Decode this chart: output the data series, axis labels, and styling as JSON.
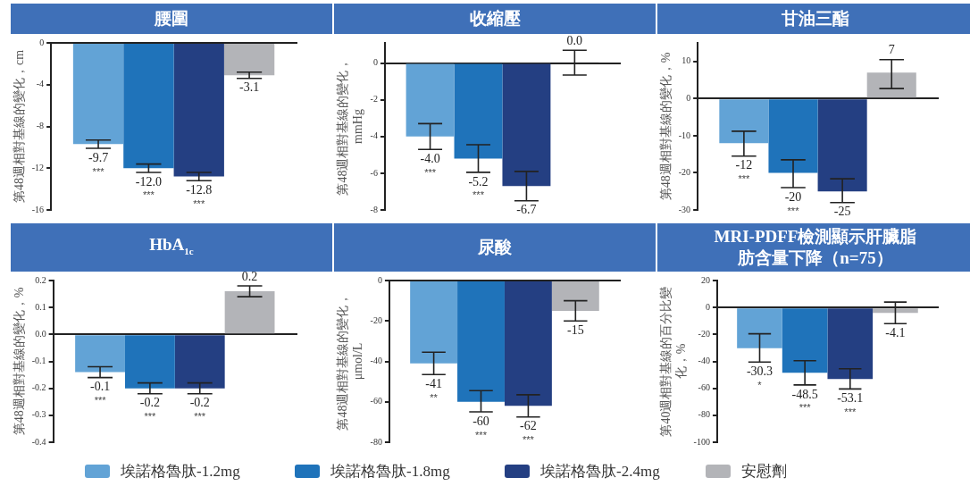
{
  "chart_data": [
    {
      "type": "bar",
      "title": "腰圍",
      "ylabel": "第48週相對基線的變化，cm",
      "categories": [
        null
      ],
      "ylim": [
        -16,
        0
      ],
      "yticks": [
        0,
        -4,
        -8,
        -12,
        -16
      ],
      "tick_labels": "y",
      "legend": "bottom",
      "series": [
        {
          "name": "埃諾格魯肽-1.2mg",
          "color": "#62a3d6",
          "values": [
            -9.7
          ],
          "errors": [
            0.4
          ],
          "value_labels": [
            "-9.7\n***"
          ]
        },
        {
          "name": "埃諾格魯肽-1.8mg",
          "color": "#1f73ba",
          "values": [
            -12.0
          ],
          "errors": [
            0.4
          ],
          "value_labels": [
            "-12.0\n***"
          ]
        },
        {
          "name": "埃諾格魯肽-2.4mg",
          "color": "#243f82",
          "values": [
            -12.8
          ],
          "errors": [
            0.4
          ],
          "value_labels": [
            "-12.8\n***"
          ]
        },
        {
          "name": "安慰劑",
          "color": "#b3b4b8",
          "values": [
            -3.1
          ],
          "errors": [
            0.3
          ],
          "value_labels": [
            "-3.1"
          ]
        }
      ]
    },
    {
      "type": "bar",
      "title": "收縮壓",
      "ylabel": "第48週相對基線的變化，mmHg",
      "categories": [
        null
      ],
      "ylim": [
        -8,
        1.1
      ],
      "yticks": [
        0,
        -2,
        -4,
        -6,
        -8
      ],
      "tick_labels": "y",
      "series": [
        {
          "color": "#62a3d6",
          "values": [
            -4.0
          ],
          "errors": [
            0.7
          ],
          "value_labels": [
            "-4.0\n***"
          ]
        },
        {
          "color": "#1f73ba",
          "values": [
            -5.2
          ],
          "errors": [
            0.75
          ],
          "value_labels": [
            "-5.2\n***"
          ]
        },
        {
          "color": "#243f82",
          "values": [
            -6.7
          ],
          "errors": [
            0.8
          ],
          "value_labels": [
            "-6.7\n***"
          ]
        },
        {
          "color": "#b3b4b8",
          "values": [
            0.04
          ],
          "errors": [
            [
              -0.65,
              0.7
            ]
          ],
          "value_labels": [
            "0.0"
          ]
        }
      ]
    },
    {
      "type": "bar",
      "title": "甘油三酯",
      "ylabel": "第48週相對基線的變化，%",
      "categories": [
        null
      ],
      "ylim": [
        -30,
        15
      ],
      "yticks": [
        10,
        0,
        -10,
        -20,
        -30
      ],
      "tick_labels": "y",
      "series": [
        {
          "color": "#62a3d6",
          "values": [
            -12
          ],
          "errors": [
            [
              -15.5,
              -8.8
            ]
          ],
          "value_labels": [
            "-12\n***"
          ]
        },
        {
          "color": "#1f73ba",
          "values": [
            -20
          ],
          "errors": [
            [
              -24,
              -16.5
            ]
          ],
          "value_labels": [
            "-20\n***"
          ]
        },
        {
          "color": "#243f82",
          "values": [
            -25
          ],
          "errors": [
            [
              -28,
              -21.6
            ]
          ],
          "value_labels": [
            "-25\n***"
          ]
        },
        {
          "color": "#b3b4b8",
          "values": [
            7
          ],
          "errors": [
            [
              2.7,
              10.5
            ]
          ],
          "value_labels": [
            "7"
          ]
        }
      ]
    },
    {
      "type": "bar",
      "title": "HbA$_{1c}$",
      "ylabel": "第48週相對基線的變化，%",
      "categories": [
        null
      ],
      "ylim": [
        -0.4,
        0.2
      ],
      "yticks": [
        0.2,
        0.1,
        {
          "value": 0,
          "label": "0.0"
        },
        -0.1,
        -0.2,
        -0.3,
        -0.4
      ],
      "tick_labels": "y",
      "series": [
        {
          "color": "#62a3d6",
          "values": [
            -0.14
          ],
          "errors": [
            [
              -0.16,
              -0.12
            ]
          ],
          "value_labels": [
            "-0.1\n***"
          ]
        },
        {
          "color": "#1f73ba",
          "values": [
            -0.2
          ],
          "errors": [
            [
              -0.22,
              -0.18
            ]
          ],
          "value_labels": [
            "-0.2\n***"
          ]
        },
        {
          "color": "#243f82",
          "values": [
            -0.2
          ],
          "errors": [
            [
              -0.22,
              -0.18
            ]
          ],
          "value_labels": [
            "-0.2\n***"
          ]
        },
        {
          "color": "#b3b4b8",
          "values": [
            0.16
          ],
          "errors": [
            [
              0.14,
              0.18
            ]
          ],
          "value_labels": [
            "0.2"
          ]
        }
      ]
    },
    {
      "type": "bar",
      "title": "尿酸",
      "ylabel": "第48週相對基線的變化，μmol/L",
      "categories": [
        null
      ],
      "ylim": [
        -80,
        0
      ],
      "yticks": [
        0,
        -20,
        -40,
        -60,
        -80
      ],
      "tick_labels": "y",
      "series": [
        {
          "color": "#62a3d6",
          "values": [
            -41
          ],
          "errors": [
            [
              -46.5,
              -35.5
            ]
          ],
          "value_labels": [
            "-41\n**"
          ]
        },
        {
          "color": "#1f73ba",
          "values": [
            -60
          ],
          "errors": [
            [
              -65,
              -54.5
            ]
          ],
          "value_labels": [
            "-60\n***"
          ]
        },
        {
          "color": "#243f82",
          "values": [
            -62
          ],
          "errors": [
            [
              -67.5,
              -56.5
            ]
          ],
          "value_labels": [
            "-62\n***"
          ]
        },
        {
          "color": "#b3b4b8",
          "values": [
            -15
          ],
          "errors": [
            [
              -20,
              -10
            ]
          ],
          "value_labels": [
            "-15"
          ]
        }
      ]
    },
    {
      "type": "bar",
      "title": "MRI-PDFF檢測顯示肝臟脂肪含量下降（n=75）",
      "ylabel": "第40週相對基線的百分比變化，%",
      "categories": [
        null
      ],
      "ylim": [
        -100,
        20
      ],
      "yticks": [
        20,
        0,
        -20,
        -40,
        -60,
        -80,
        -100
      ],
      "tick_labels": "y",
      "series": [
        {
          "color": "#62a3d6",
          "values": [
            -30.3
          ],
          "errors": [
            [
              -40.5,
              -19.5
            ]
          ],
          "value_labels": [
            "-30.3\n*"
          ]
        },
        {
          "color": "#1f73ba",
          "values": [
            -48.5
          ],
          "errors": [
            [
              -57.5,
              -39.5
            ]
          ],
          "value_labels": [
            "-48.5\n***"
          ]
        },
        {
          "color": "#243f82",
          "values": [
            -53.1
          ],
          "errors": [
            [
              -60.5,
              -45.5
            ]
          ],
          "value_labels": [
            "-53.1\n***"
          ]
        },
        {
          "color": "#b3b4b8",
          "values": [
            -4.1
          ],
          "errors": [
            [
              -12,
              4
            ]
          ],
          "value_labels": [
            "-4.1"
          ]
        }
      ]
    }
  ]
}
